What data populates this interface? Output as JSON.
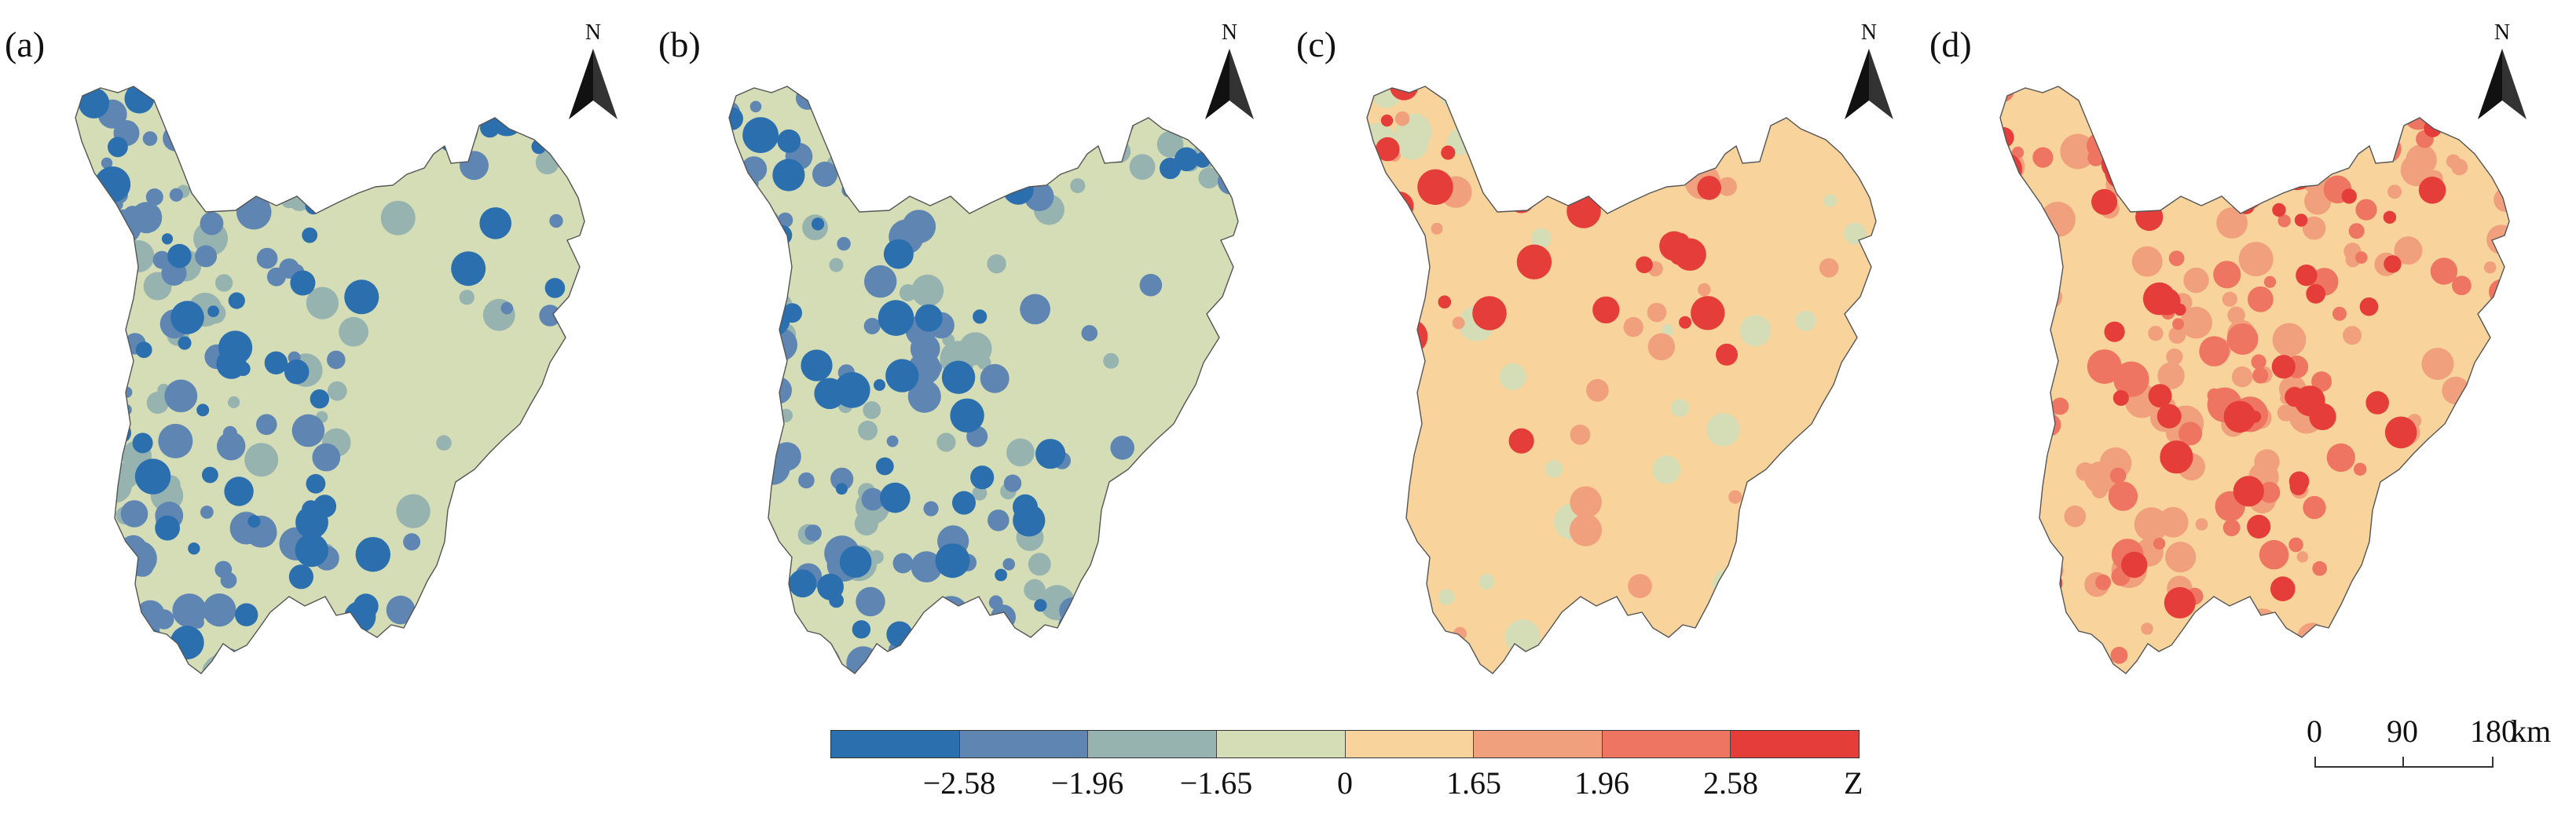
{
  "panels": [
    {
      "label": "(a)",
      "north_label": "N",
      "scheme": "cold"
    },
    {
      "label": "(b)",
      "north_label": "N",
      "scheme": "cold2"
    },
    {
      "label": "(c)",
      "north_label": "N",
      "scheme": "warm"
    },
    {
      "label": "(d)",
      "north_label": "N",
      "scheme": "hot"
    }
  ],
  "legend": {
    "ticks": [
      "−2.58",
      "−1.96",
      "−1.65",
      "0",
      "1.65",
      "1.96",
      "2.58"
    ],
    "unit": "Z",
    "colors": [
      "#2b6fae",
      "#5f86b2",
      "#97b3b0",
      "#d4ddb6",
      "#f8d49c",
      "#f1a07e",
      "#ee7561",
      "#e43d3a"
    ]
  },
  "scale": {
    "labels": [
      "0",
      "90",
      "180"
    ],
    "unit": "km"
  }
}
